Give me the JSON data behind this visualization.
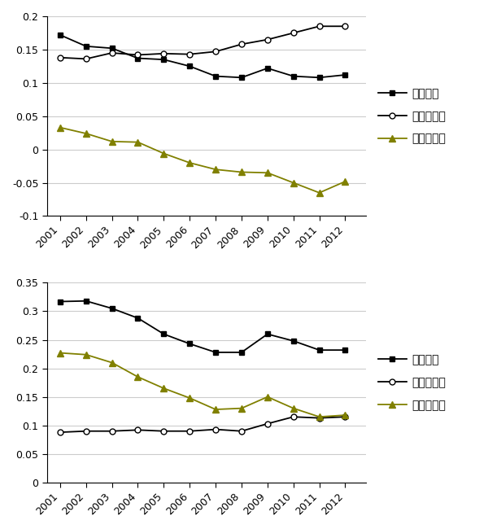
{
  "years": [
    2001,
    2002,
    2003,
    2004,
    2005,
    2006,
    2007,
    2008,
    2009,
    2010,
    2011,
    2012
  ],
  "top": {
    "debt_ratio": [
      0.172,
      0.155,
      0.152,
      0.137,
      0.135,
      0.125,
      0.11,
      0.108,
      0.122,
      0.11,
      0.108,
      0.112
    ],
    "liquidity_ratio": [
      0.138,
      0.136,
      0.145,
      0.142,
      0.144,
      0.143,
      0.147,
      0.158,
      0.165,
      0.175,
      0.185,
      0.185
    ],
    "net_debt_ratio": [
      0.033,
      0.024,
      0.012,
      0.011,
      -0.006,
      -0.02,
      -0.03,
      -0.034,
      -0.035,
      -0.05,
      -0.065,
      -0.048
    ],
    "ylim": [
      -0.1,
      0.2
    ],
    "yticks": [
      -0.1,
      -0.05,
      0,
      0.05,
      0.1,
      0.15,
      0.2
    ]
  },
  "bottom": {
    "debt_ratio": [
      0.317,
      0.318,
      0.305,
      0.288,
      0.26,
      0.243,
      0.228,
      0.228,
      0.26,
      0.248,
      0.232,
      0.232
    ],
    "liquidity_ratio": [
      0.088,
      0.09,
      0.09,
      0.092,
      0.09,
      0.09,
      0.093,
      0.09,
      0.103,
      0.115,
      0.113,
      0.115
    ],
    "net_debt_ratio": [
      0.227,
      0.224,
      0.21,
      0.185,
      0.165,
      0.148,
      0.128,
      0.13,
      0.15,
      0.13,
      0.115,
      0.118
    ],
    "ylim": [
      0,
      0.35
    ],
    "yticks": [
      0,
      0.05,
      0.1,
      0.15,
      0.2,
      0.25,
      0.3,
      0.35
    ]
  },
  "legend_labels": [
    "負債比率",
    "流動性比率",
    "純負債比率"
  ],
  "triangle_color": "#808000",
  "font_size": 10,
  "tick_font_size": 9,
  "legend_fontsize": 10
}
